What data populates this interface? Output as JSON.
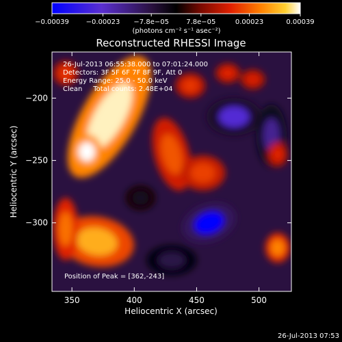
{
  "chart_data": {
    "type": "heatmap",
    "title": "Reconstructed RHESSI Image",
    "xlabel": "Heliocentric X (arcsec)",
    "ylabel": "Heliocentric Y (arcsec)",
    "xlim": [
      334,
      526
    ],
    "ylim": [
      -355,
      -163
    ],
    "x_ticks": [
      350,
      400,
      450,
      500
    ],
    "y_ticks": [
      -200,
      -250,
      -300
    ],
    "colorbar": {
      "range": [
        -0.00039,
        0.00039
      ],
      "tick_values": [
        -0.00039,
        -0.00023,
        -7.8e-05,
        7.8e-05,
        0.00023,
        0.00039
      ],
      "tick_labels": [
        "−0.00039",
        "−0.00023",
        "−7.8e−05",
        "7.8e−05",
        "0.00023",
        "0.00039"
      ],
      "unit_label": "(photons cm⁻² s⁻¹ asec⁻²)",
      "colors": [
        "#0000ff",
        "#5a2fd0",
        "#2a1140",
        "#000000",
        "#7a0a00",
        "#e02000",
        "#ff8000",
        "#ffd030",
        "#ffffff"
      ]
    },
    "annotations": [
      "26-Jul-2013 06:55:38.000 to 07:01:24.000",
      "Detectors: 3F 5F 6F 7F 8F 9F, Att 0",
      "Energy Range: 25.0 - 50.0 keV",
      "Clean     Total counts: 2.48E+04"
    ],
    "peak_label": "Position of Peak = [362,-243]",
    "peak": {
      "x": 362,
      "y": -243
    },
    "hot_regions": [
      {
        "x": 380,
        "y": -215,
        "rx": 22,
        "ry": 55,
        "rot": 30,
        "value": 0.00036
      },
      {
        "x": 362,
        "y": -243,
        "rx": 12,
        "ry": 14,
        "rot": 0,
        "value": 0.00039
      },
      {
        "x": 370,
        "y": -315,
        "rx": 30,
        "ry": 20,
        "rot": 10,
        "value": 0.00025
      },
      {
        "x": 345,
        "y": -305,
        "rx": 10,
        "ry": 25,
        "rot": 0,
        "value": 0.00018
      },
      {
        "x": 430,
        "y": -245,
        "rx": 14,
        "ry": 30,
        "rot": -15,
        "value": 0.00015
      },
      {
        "x": 455,
        "y": -260,
        "rx": 18,
        "ry": 14,
        "rot": 0,
        "value": 0.00013
      },
      {
        "x": 445,
        "y": -190,
        "rx": 12,
        "ry": 10,
        "rot": 0,
        "value": 0.00012
      },
      {
        "x": 475,
        "y": -180,
        "rx": 10,
        "ry": 8,
        "rot": 0,
        "value": 0.0001
      },
      {
        "x": 345,
        "y": -180,
        "rx": 10,
        "ry": 10,
        "rot": 0,
        "value": 0.00012
      },
      {
        "x": 515,
        "y": -320,
        "rx": 10,
        "ry": 12,
        "rot": 0,
        "value": 0.0002
      },
      {
        "x": 515,
        "y": -245,
        "rx": 8,
        "ry": 10,
        "rot": 0,
        "value": 0.0001
      },
      {
        "x": 495,
        "y": -185,
        "rx": 10,
        "ry": 8,
        "rot": 0,
        "value": 9e-05
      }
    ],
    "cold_regions": [
      {
        "x": 460,
        "y": -300,
        "rx": 22,
        "ry": 15,
        "rot": -20,
        "value": -0.00039
      },
      {
        "x": 480,
        "y": -215,
        "rx": 22,
        "ry": 15,
        "rot": 0,
        "value": -0.0003
      },
      {
        "x": 510,
        "y": -230,
        "rx": 12,
        "ry": 25,
        "rot": 0,
        "value": -0.00025
      },
      {
        "x": 430,
        "y": -330,
        "rx": 20,
        "ry": 12,
        "rot": 0,
        "value": -0.0002
      },
      {
        "x": 405,
        "y": -280,
        "rx": 12,
        "ry": 10,
        "rot": 0,
        "value": -0.00015
      }
    ]
  },
  "footer": {
    "timestamp": "26-Jul-2013 07:53"
  }
}
